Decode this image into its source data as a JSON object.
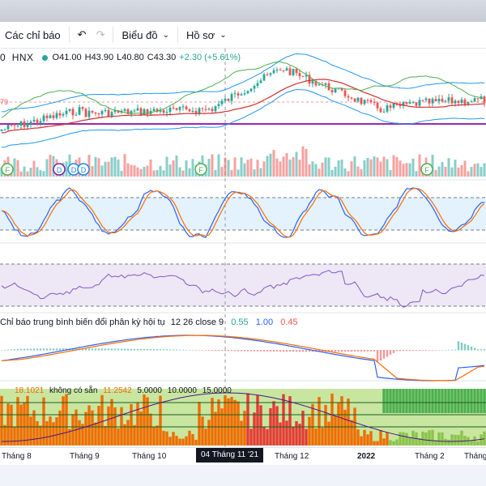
{
  "toolbar": {
    "indicators_label": "Các chỉ báo",
    "undo_icon": "undo-icon",
    "redo_icon": "redo-icon",
    "chart_type_label": "Biểu đồ",
    "profile_label": "Hồ sơ"
  },
  "legend": {
    "symbol_prefix": "0",
    "exchange": "HNX",
    "open": "O41.00",
    "high": "H43.90",
    "low": "L40.80",
    "close": "C43.30",
    "change": "+2.30 (+5.61%)",
    "price_marker": "79"
  },
  "macd_legend": {
    "name": "Chỉ báo trung bình biến đổi phân kỳ hội tụ",
    "params": "12 26 close 9",
    "v1": "0.55",
    "v2": "1.00",
    "v3": "0.45"
  },
  "dmi_legend": {
    "v0": "18.1021",
    "na": "không có sẵn",
    "v1": "11.2542",
    "v2": "5.0000",
    "v3": "10.0000",
    "v4": "15.0000"
  },
  "axis": {
    "labels": [
      "Tháng 8",
      "Tháng 9",
      "Tháng 10",
      "Tháng 12",
      "2022",
      "Tháng 2",
      "Tháng 3"
    ],
    "crosshair_date": "04 Tháng 11 '21"
  },
  "events": [
    "F",
    "D",
    "D",
    "D",
    "F",
    "F"
  ],
  "colors": {
    "up": "#26a69a",
    "down": "#ef5350",
    "macd": "#2962ff",
    "signal": "#ff6d00",
    "stoch_band": "#e3f2fd",
    "rsi_band": "#ede7f6",
    "rsi_line": "#7e57c2",
    "support": "#9c27b0",
    "bb": "#2196f3",
    "ichimoku_lead": "#4caf50"
  }
}
